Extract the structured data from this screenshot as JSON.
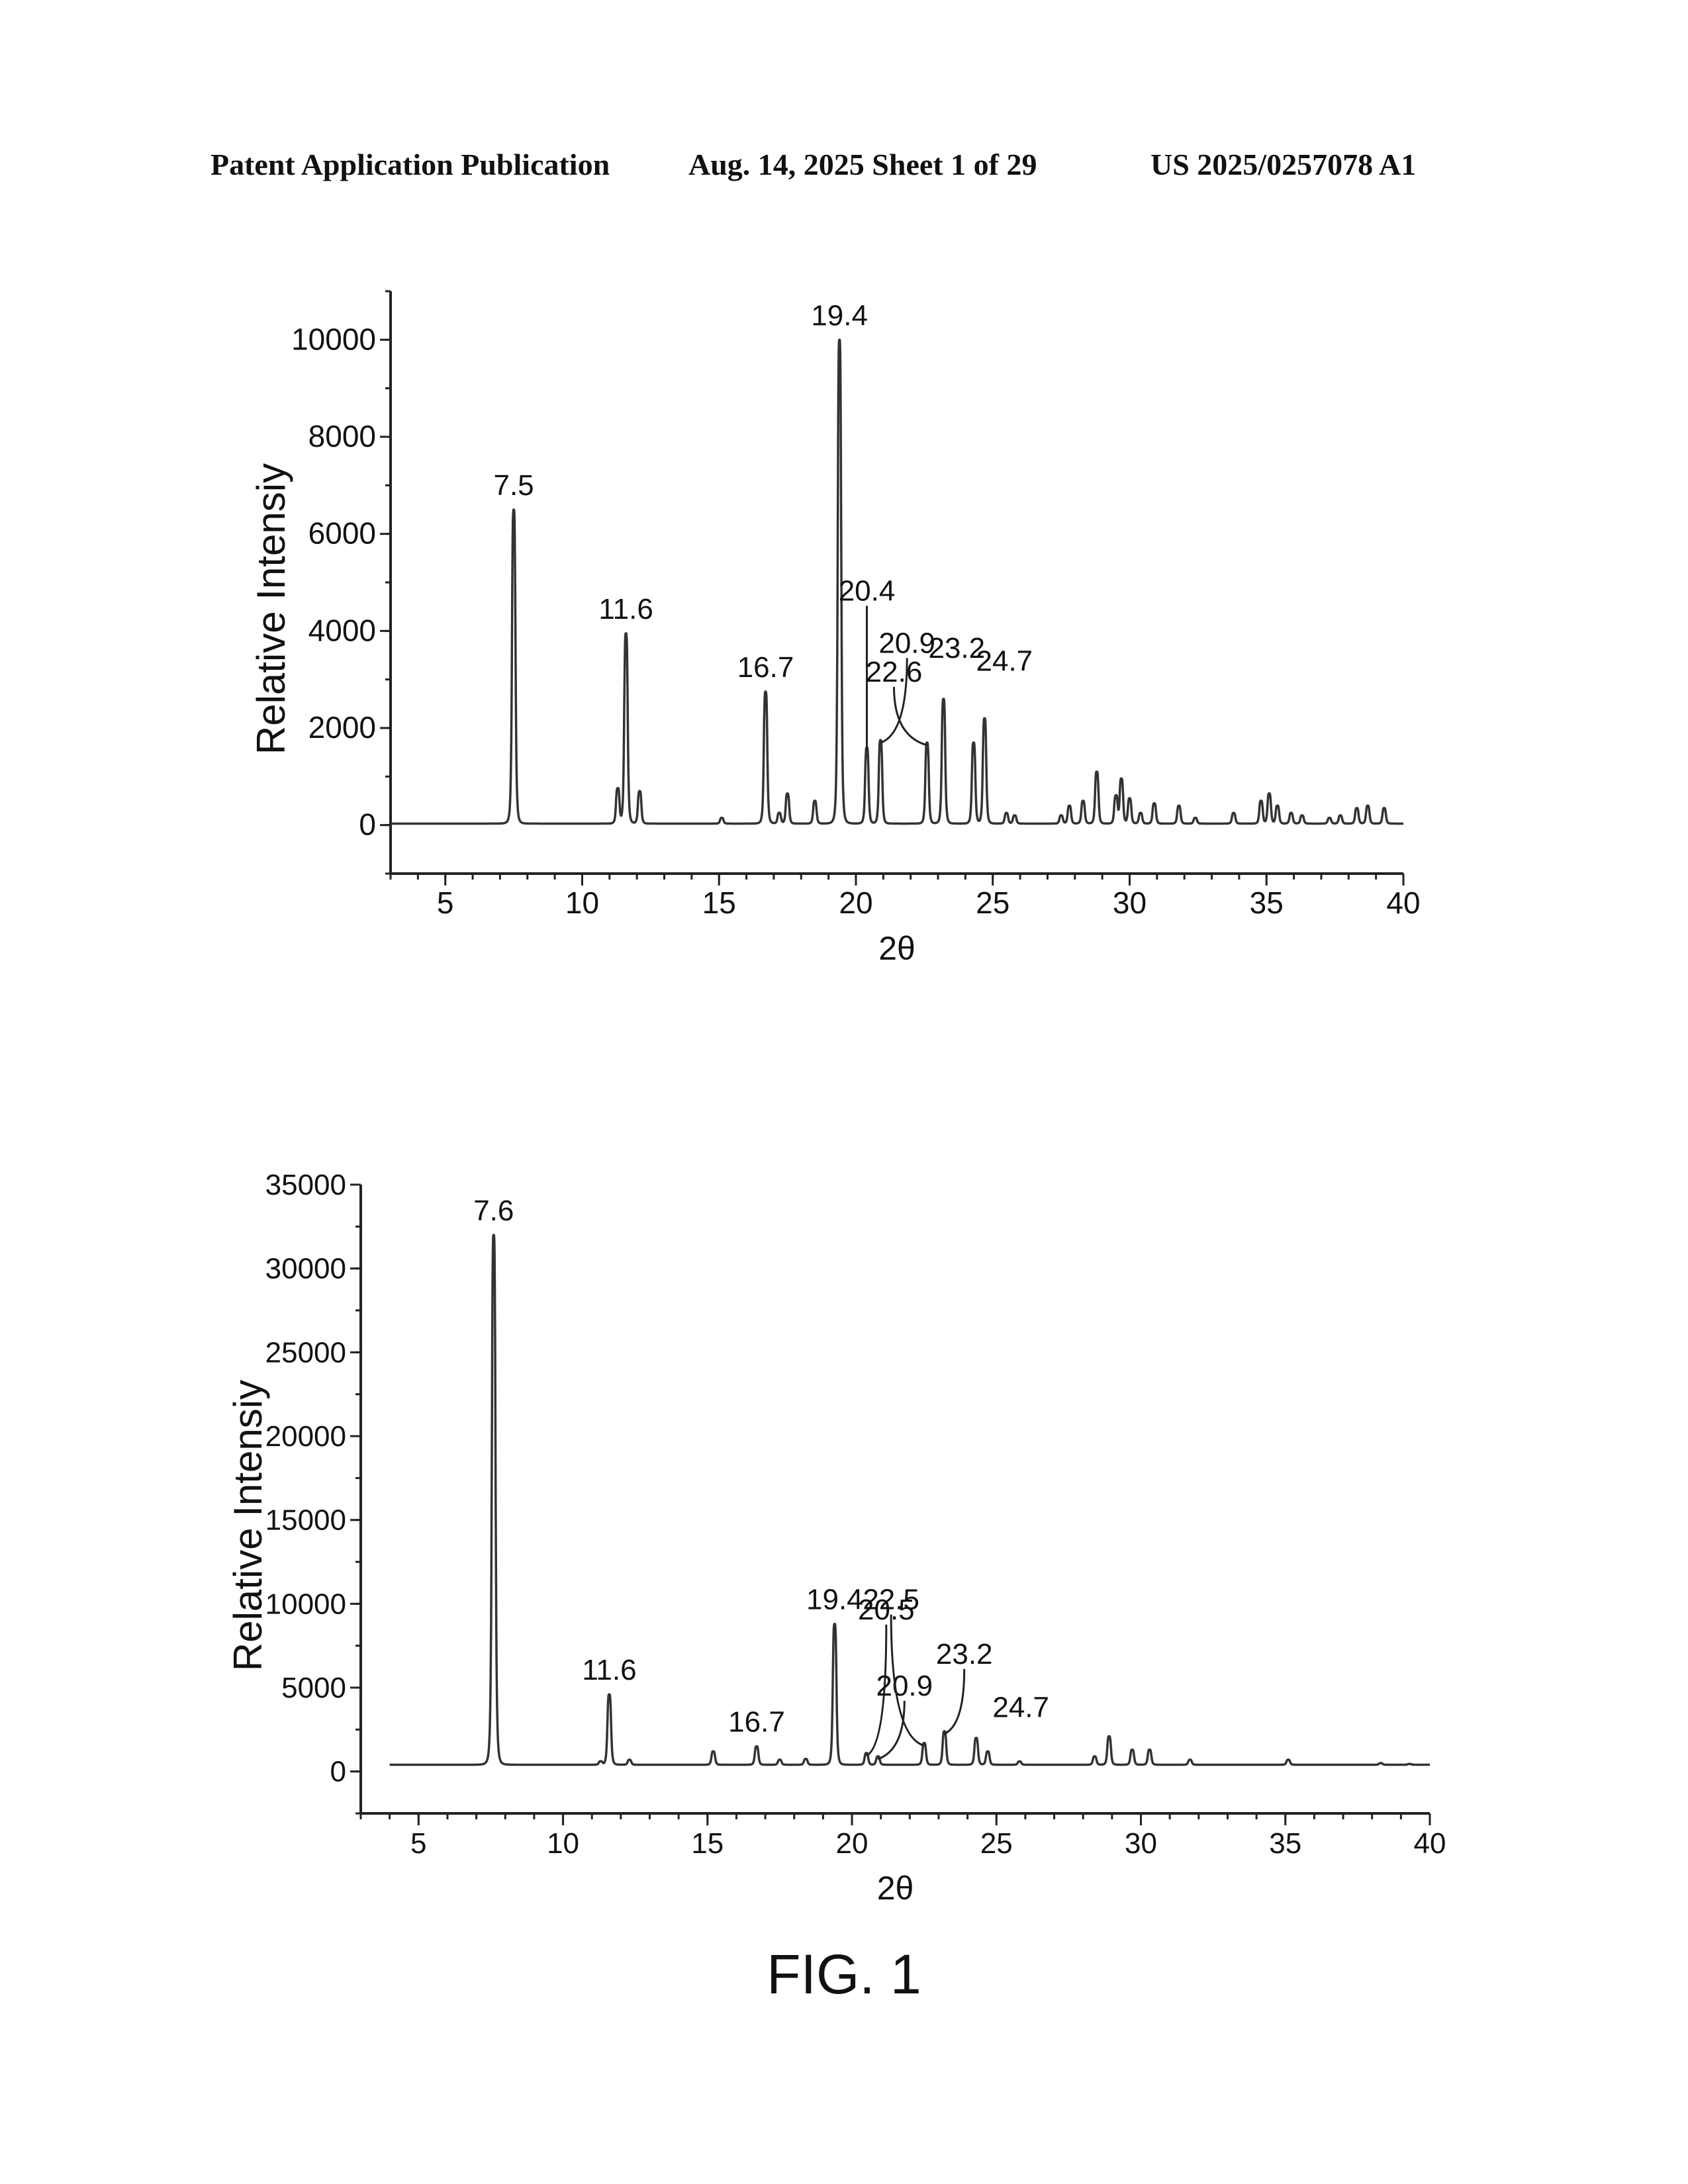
{
  "header": {
    "publication": "Patent Application Publication",
    "date_sheet": "Aug. 14, 2025  Sheet 1 of 29",
    "number": "US 2025/0257078 A1"
  },
  "figure_label": "FIG. 1",
  "chart_data": [
    {
      "type": "line",
      "xlabel": "2θ",
      "ylabel": "Relative Intensiy",
      "xlim": [
        3,
        40
      ],
      "ylim": [
        -1000,
        11000
      ],
      "xticks": [
        5,
        10,
        15,
        20,
        25,
        30,
        35,
        40
      ],
      "yticks": [
        0,
        2000,
        4000,
        6000,
        8000,
        10000
      ],
      "baseline": 30,
      "peaks": [
        {
          "x": 7.5,
          "y": 6500,
          "label": "7.5"
        },
        {
          "x": 11.3,
          "y": 750,
          "label": ""
        },
        {
          "x": 11.6,
          "y": 3950,
          "label": "11.6"
        },
        {
          "x": 12.1,
          "y": 700,
          "label": ""
        },
        {
          "x": 15.1,
          "y": 150,
          "label": ""
        },
        {
          "x": 16.7,
          "y": 2750,
          "label": "16.7"
        },
        {
          "x": 17.2,
          "y": 250,
          "label": ""
        },
        {
          "x": 17.5,
          "y": 650,
          "label": ""
        },
        {
          "x": 18.5,
          "y": 500,
          "label": ""
        },
        {
          "x": 19.4,
          "y": 10000,
          "label": "19.4"
        },
        {
          "x": 20.4,
          "y": 1600,
          "label": "20.4"
        },
        {
          "x": 20.9,
          "y": 1750,
          "label": "20.9"
        },
        {
          "x": 22.6,
          "y": 1700,
          "label": "22.6"
        },
        {
          "x": 23.2,
          "y": 2600,
          "label": "23.2"
        },
        {
          "x": 24.3,
          "y": 1700,
          "label": ""
        },
        {
          "x": 24.7,
          "y": 2200,
          "label": "24.7"
        },
        {
          "x": 25.5,
          "y": 250,
          "label": ""
        },
        {
          "x": 25.8,
          "y": 200,
          "label": ""
        },
        {
          "x": 27.5,
          "y": 200,
          "label": ""
        },
        {
          "x": 27.8,
          "y": 400,
          "label": ""
        },
        {
          "x": 28.3,
          "y": 500,
          "label": ""
        },
        {
          "x": 28.8,
          "y": 1100,
          "label": ""
        },
        {
          "x": 29.5,
          "y": 600,
          "label": ""
        },
        {
          "x": 29.7,
          "y": 950,
          "label": ""
        },
        {
          "x": 30.0,
          "y": 550,
          "label": ""
        },
        {
          "x": 30.4,
          "y": 250,
          "label": ""
        },
        {
          "x": 30.9,
          "y": 450,
          "label": ""
        },
        {
          "x": 31.8,
          "y": 400,
          "label": ""
        },
        {
          "x": 32.4,
          "y": 150,
          "label": ""
        },
        {
          "x": 33.8,
          "y": 250,
          "label": ""
        },
        {
          "x": 34.8,
          "y": 500,
          "label": ""
        },
        {
          "x": 35.1,
          "y": 650,
          "label": ""
        },
        {
          "x": 35.4,
          "y": 400,
          "label": ""
        },
        {
          "x": 35.9,
          "y": 250,
          "label": ""
        },
        {
          "x": 36.3,
          "y": 200,
          "label": ""
        },
        {
          "x": 37.3,
          "y": 150,
          "label": ""
        },
        {
          "x": 37.7,
          "y": 200,
          "label": ""
        },
        {
          "x": 38.3,
          "y": 350,
          "label": ""
        },
        {
          "x": 38.7,
          "y": 400,
          "label": ""
        },
        {
          "x": 39.3,
          "y": 350,
          "label": ""
        }
      ]
    },
    {
      "type": "line",
      "xlabel": "2θ",
      "ylabel": "Relative Intensiy",
      "xlim": [
        3,
        40
      ],
      "ylim": [
        -2500,
        35000
      ],
      "xticks": [
        5,
        10,
        15,
        20,
        25,
        30,
        35,
        40
      ],
      "yticks": [
        0,
        5000,
        10000,
        15000,
        20000,
        25000,
        30000,
        35000
      ],
      "baseline": 400,
      "x_start": 4,
      "peaks": [
        {
          "x": 7.6,
          "y": 32000,
          "label": "7.6"
        },
        {
          "x": 11.3,
          "y": 600,
          "label": ""
        },
        {
          "x": 11.6,
          "y": 4600,
          "label": "11.6"
        },
        {
          "x": 12.3,
          "y": 700,
          "label": ""
        },
        {
          "x": 15.2,
          "y": 1200,
          "label": ""
        },
        {
          "x": 16.7,
          "y": 1500,
          "label": "16.7"
        },
        {
          "x": 17.5,
          "y": 700,
          "label": ""
        },
        {
          "x": 18.4,
          "y": 750,
          "label": ""
        },
        {
          "x": 19.4,
          "y": 8800,
          "label": "19.4"
        },
        {
          "x": 20.5,
          "y": 1100,
          "label": "20.5"
        },
        {
          "x": 20.9,
          "y": 900,
          "label": "20.9"
        },
        {
          "x": 22.5,
          "y": 1700,
          "label": "22.5"
        },
        {
          "x": 23.2,
          "y": 2400,
          "label": "23.2"
        },
        {
          "x": 24.3,
          "y": 2000,
          "label": ""
        },
        {
          "x": 24.7,
          "y": 1200,
          "label": "24.7"
        },
        {
          "x": 25.8,
          "y": 600,
          "label": ""
        },
        {
          "x": 28.4,
          "y": 900,
          "label": ""
        },
        {
          "x": 28.9,
          "y": 2100,
          "label": ""
        },
        {
          "x": 29.7,
          "y": 1300,
          "label": ""
        },
        {
          "x": 30.3,
          "y": 1300,
          "label": ""
        },
        {
          "x": 31.7,
          "y": 700,
          "label": ""
        },
        {
          "x": 35.1,
          "y": 700,
          "label": ""
        },
        {
          "x": 38.3,
          "y": 500,
          "label": ""
        },
        {
          "x": 39.3,
          "y": 450,
          "label": ""
        }
      ]
    }
  ]
}
